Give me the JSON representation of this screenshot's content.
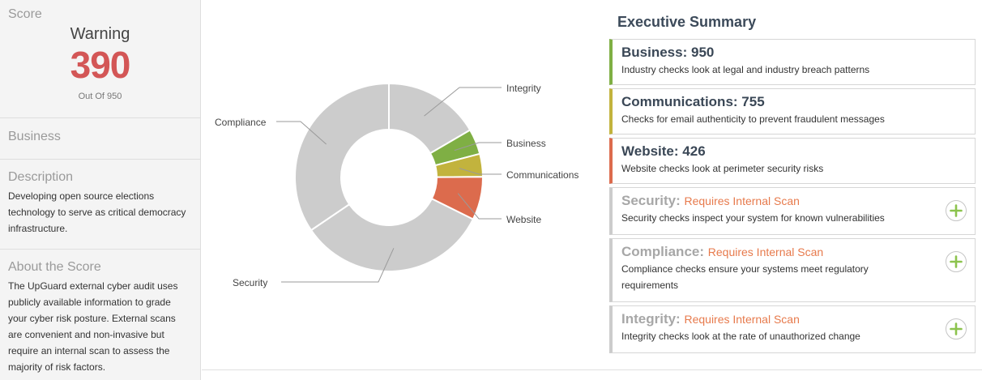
{
  "sidebar": {
    "score": {
      "title": "Score",
      "status": "Warning",
      "value": "390",
      "out_of": "Out Of 950"
    },
    "business": {
      "title": "Business"
    },
    "description": {
      "title": "Description",
      "text": "Developing open source elections\ntechnology to serve as critical democracy\n infrastructure."
    },
    "about": {
      "title": "About the Score",
      "text": "The UpGuard external cyber audit uses\npublicly available information to grade\nyour cyber risk posture. External scans\nare convenient and non-invasive but\nrequire an internal scan to assess the\nmajority of risk factors."
    }
  },
  "chart_data": {
    "type": "pie",
    "style": "donut",
    "labels": [
      "Integrity",
      "Business",
      "Communications",
      "Website",
      "Security",
      "Compliance"
    ],
    "values": [
      950,
      250,
      226,
      426,
      1900,
      1975
    ],
    "colors": [
      "#cccccc",
      "#7faf44",
      "#c2b33d",
      "#dc6b4d",
      "#cccccc",
      "#cccccc"
    ]
  },
  "summary": {
    "title": "Executive Summary",
    "cards": [
      {
        "name": "Business:",
        "score": "950",
        "requirement": "",
        "desc": "Industry checks look at legal and industry breach patterns",
        "accent": "#7faf44"
      },
      {
        "name": "Communications:",
        "score": "755",
        "requirement": "",
        "desc": "Checks for email authenticity to prevent fraudulent messages",
        "accent": "#c2b33d"
      },
      {
        "name": "Website:",
        "score": "426",
        "requirement": "",
        "desc": "Website checks look at perimeter security risks",
        "accent": "#dc6b4d"
      },
      {
        "name": "Security:",
        "score": "",
        "requirement": "Requires Internal Scan",
        "desc": "Security checks inspect your system for known vulnerabilities",
        "accent": "#cccccc",
        "icon": "plus-circle-icon"
      },
      {
        "name": "Compliance:",
        "score": "",
        "requirement": "Requires Internal Scan",
        "desc": "Compliance checks ensure your systems meet regulatory requirements",
        "accent": "#cccccc",
        "icon": "plus-circle-icon"
      },
      {
        "name": "Integrity:",
        "score": "",
        "requirement": "Requires Internal Scan",
        "desc": "Integrity checks look at the rate of unauthorized change",
        "accent": "#cccccc",
        "icon": "plus-circle-icon"
      }
    ]
  }
}
